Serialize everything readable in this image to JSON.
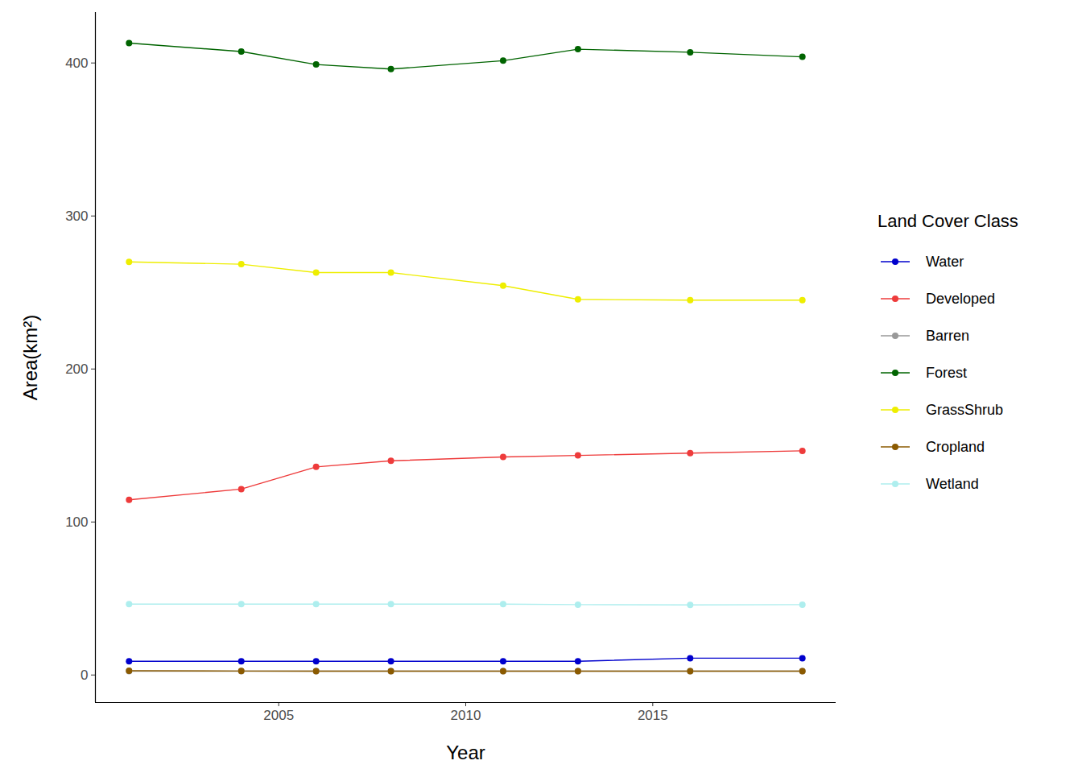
{
  "chart_data": {
    "type": "line",
    "x_label": "Year",
    "y_label": "Area(km²)",
    "legend_title": "Land Cover Class",
    "legend": "right",
    "grid": false,
    "marker": "circle",
    "x": [
      2001,
      2004,
      2006,
      2008,
      2011,
      2013,
      2016,
      2019
    ],
    "xlim": [
      2000.1,
      2019.9
    ],
    "xticks": [
      2005,
      2010,
      2015
    ],
    "ylim": [
      -18,
      433
    ],
    "yticks": [
      0,
      100,
      200,
      300,
      400
    ],
    "series": [
      {
        "name": "Water",
        "color": "#0000cd",
        "values": [
          9,
          9,
          9,
          9,
          9,
          9,
          11,
          11
        ]
      },
      {
        "name": "Developed",
        "color": "#ee3b3b",
        "values": [
          114.5,
          121.5,
          136,
          140,
          142.5,
          143.5,
          145,
          146.5
        ]
      },
      {
        "name": "Barren",
        "color": "#999999",
        "values": [
          2.5,
          2.5,
          2.5,
          2.5,
          2.5,
          2.5,
          2.5,
          2.5
        ]
      },
      {
        "name": "Forest",
        "color": "#006400",
        "values": [
          413,
          407.5,
          399,
          396,
          401.5,
          409,
          407,
          404
        ]
      },
      {
        "name": "GrassShrub",
        "color": "#eeee00",
        "values": [
          270,
          268.5,
          263,
          263,
          254.5,
          245.5,
          245,
          245
        ]
      },
      {
        "name": "Cropland",
        "color": "#8b5a00",
        "values": [
          2.8,
          2.6,
          2.5,
          2.5,
          2.5,
          2.5,
          2.5,
          2.5
        ]
      },
      {
        "name": "Wetland",
        "color": "#aeeeee",
        "values": [
          46.3,
          46.3,
          46.3,
          46.3,
          46.3,
          46,
          45.8,
          46
        ]
      }
    ]
  }
}
